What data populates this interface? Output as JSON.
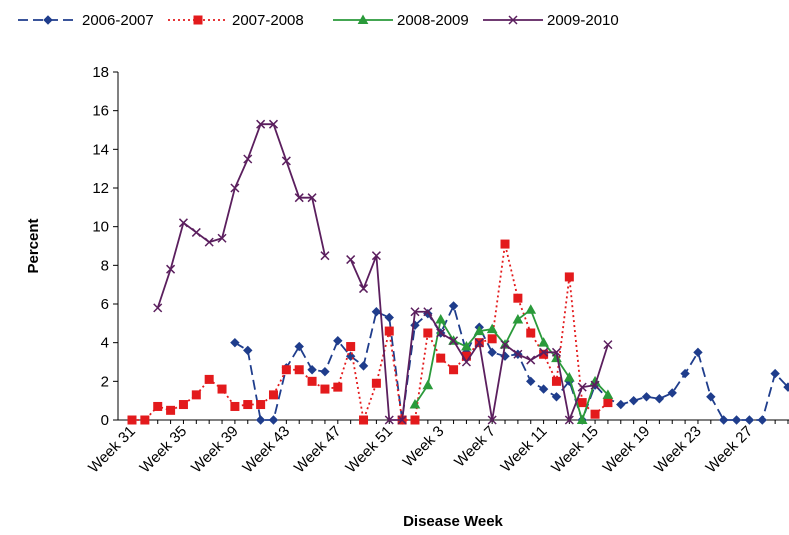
{
  "chart_data": {
    "type": "line",
    "x_label": "Disease Week",
    "y_label": "Percent",
    "categories": [
      "Week 31",
      null,
      null,
      null,
      "Week 35",
      null,
      null,
      null,
      "Week 39",
      null,
      null,
      null,
      "Week 43",
      null,
      null,
      null,
      "Week 47",
      null,
      null,
      null,
      "Week 51",
      null,
      null,
      null,
      "Week 3",
      null,
      null,
      null,
      "Week 7",
      null,
      null,
      null,
      "Week 11",
      null,
      null,
      null,
      "Week 15",
      null,
      null,
      null,
      "Week 19",
      null,
      null,
      null,
      "Week 23",
      null,
      null,
      null,
      "Week 27",
      null,
      null,
      null
    ],
    "ylim": [
      0,
      18
    ],
    "yticks": [
      0,
      2,
      4,
      6,
      8,
      10,
      12,
      14,
      16,
      18
    ],
    "grid": false,
    "legend": "top",
    "series": [
      {
        "name": "2006-2007",
        "color": "#1f3d8c",
        "dash": "long",
        "marker": "diamond",
        "values": [
          null,
          null,
          null,
          null,
          null,
          null,
          null,
          null,
          4.0,
          3.6,
          0,
          0,
          2.7,
          3.8,
          2.6,
          2.5,
          4.1,
          3.3,
          2.8,
          5.6,
          5.3,
          0,
          4.9,
          5.5,
          4.5,
          5.9,
          3.5,
          4.8,
          3.5,
          3.3,
          3.4,
          2.0,
          1.6,
          1.2,
          2.0,
          0,
          1.8,
          1.1,
          0.8,
          1.0,
          1.2,
          1.1,
          1.4,
          2.4,
          3.5,
          1.2,
          0,
          0,
          0,
          0,
          2.4,
          1.7
        ]
      },
      {
        "name": "2007-2008",
        "color": "#e31a1c",
        "dash": "dot",
        "marker": "square",
        "values": [
          0,
          0,
          0.7,
          0.5,
          0.8,
          1.3,
          2.1,
          1.6,
          0.7,
          0.8,
          0.8,
          1.3,
          2.6,
          2.6,
          2.0,
          1.6,
          1.7,
          3.8,
          0,
          1.9,
          4.6,
          0,
          0,
          4.5,
          3.2,
          2.6,
          3.3,
          4.0,
          4.2,
          9.1,
          6.3,
          4.5,
          3.4,
          2.0,
          7.4,
          0.9,
          0.3,
          0.9,
          null,
          null,
          null,
          null,
          null,
          null,
          null,
          null,
          null,
          null,
          null,
          null,
          null,
          null
        ]
      },
      {
        "name": "2008-2009",
        "color": "#2a9a3a",
        "dash": "solid",
        "marker": "triangle",
        "values": [
          null,
          null,
          null,
          null,
          null,
          null,
          null,
          null,
          null,
          null,
          null,
          null,
          null,
          null,
          null,
          null,
          null,
          null,
          null,
          null,
          null,
          null,
          0.8,
          1.8,
          5.2,
          4.1,
          3.8,
          4.6,
          4.7,
          3.9,
          5.2,
          5.7,
          4.0,
          3.2,
          2.2,
          0,
          2.0,
          1.3,
          null,
          null,
          null,
          null,
          null,
          null,
          null,
          null,
          null,
          null,
          null,
          null,
          null,
          null
        ]
      },
      {
        "name": "2009-2010",
        "color": "#5b1f5e",
        "dash": "solid",
        "marker": "x",
        "values": [
          null,
          null,
          5.8,
          7.8,
          10.2,
          9.7,
          9.2,
          9.4,
          12.0,
          13.5,
          15.3,
          15.3,
          13.4,
          11.5,
          11.5,
          8.5,
          null,
          8.3,
          6.8,
          8.5,
          0,
          0,
          5.6,
          5.6,
          4.5,
          4.1,
          3.0,
          4.0,
          0,
          3.9,
          3.4,
          3.1,
          3.5,
          3.5,
          0,
          1.7,
          1.8,
          3.9,
          null,
          null,
          null,
          null,
          null,
          null,
          null,
          null,
          null,
          null,
          null,
          null,
          null,
          null
        ]
      }
    ]
  }
}
